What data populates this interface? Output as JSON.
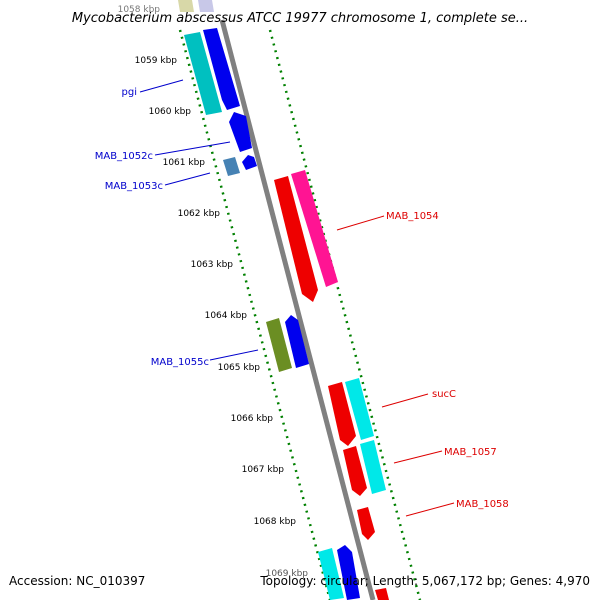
{
  "title": "Mycobacterium abscessus ATCC 19977 chromosome 1, complete se...",
  "accession": "Accession: NC_010397",
  "topology": "Topology: circular; Length: 5,067,172 bp; Genes: 4,970",
  "colors": {
    "backbone": "#808080",
    "tick": "#008000",
    "blue": "#0000ee",
    "cyan": "#00e8e8",
    "teal": "#00c0c0",
    "red": "#ee0000",
    "pink": "#ff1493",
    "olive": "#6b8e23",
    "steel": "#4682b4",
    "label_blue": "#0000cc",
    "label_red": "#dd0000"
  },
  "kbp_labels": [
    "1058 kbp",
    "1059 kbp",
    "1060 kbp",
    "1061 kbp",
    "1062 kbp",
    "1063 kbp",
    "1064 kbp",
    "1065 kbp",
    "1066 kbp",
    "1067 kbp",
    "1068 kbp",
    "1069 kbp"
  ],
  "gene_labels": [
    {
      "text": "pgi",
      "strand": "minus"
    },
    {
      "text": "MAB_1052c",
      "strand": "minus"
    },
    {
      "text": "MAB_1053c",
      "strand": "minus"
    },
    {
      "text": "MAB_1054",
      "strand": "plus"
    },
    {
      "text": "MAB_1055c",
      "strand": "minus"
    },
    {
      "text": "sucC",
      "strand": "plus"
    },
    {
      "text": "MAB_1057",
      "strand": "plus"
    },
    {
      "text": "MAB_1058",
      "strand": "plus"
    }
  ]
}
